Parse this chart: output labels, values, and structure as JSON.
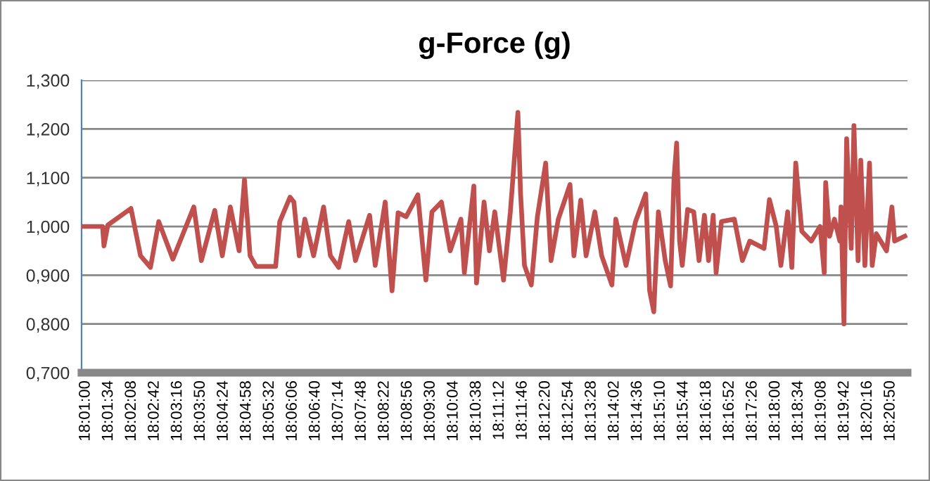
{
  "chart_data": {
    "type": "line",
    "title": "g-Force (g)",
    "x": [
      18.015,
      18.0236,
      18.0242,
      18.0258,
      18.0353,
      18.0392,
      18.0433,
      18.0467,
      18.0525,
      18.0611,
      18.0642,
      18.0697,
      18.0728,
      18.0761,
      18.0797,
      18.0819,
      18.0842,
      18.0867,
      18.0947,
      18.0964,
      18.1006,
      18.1022,
      18.1044,
      18.1067,
      18.1103,
      18.1144,
      18.1172,
      18.1206,
      18.1247,
      18.1275,
      18.1333,
      18.1356,
      18.1397,
      18.1425,
      18.145,
      18.1483,
      18.1531,
      18.1564,
      18.1589,
      18.1628,
      18.1664,
      18.1708,
      18.1722,
      18.1761,
      18.1772,
      18.1803,
      18.1825,
      18.1847,
      18.1883,
      18.1911,
      18.1942,
      18.1953,
      18.1969,
      18.1997,
      18.2022,
      18.2056,
      18.2078,
      18.2108,
      18.2156,
      18.2172,
      18.22,
      18.2222,
      18.2258,
      18.2286,
      18.2328,
      18.2344,
      18.2386,
      18.2425,
      18.2467,
      18.2483,
      18.25,
      18.2519,
      18.2547,
      18.2569,
      18.2583,
      18.2594,
      18.2606,
      18.2617,
      18.2639,
      18.2664,
      18.2686,
      18.2708,
      18.2725,
      18.2744,
      18.2756,
      18.2778,
      18.2831,
      18.2864,
      18.2894,
      18.2953,
      18.2975,
      18.3003,
      18.3022,
      18.305,
      18.3067,
      18.3083,
      18.3108,
      18.3147,
      18.3183,
      18.32,
      18.3206,
      18.3222,
      18.3242,
      18.3264,
      18.3269,
      18.3281,
      18.3292,
      18.3311,
      18.3322,
      18.3339,
      18.335,
      18.3367,
      18.3386,
      18.3397,
      18.3414,
      18.3456,
      18.3478,
      18.3489,
      18.3531
    ],
    "series": [
      {
        "color": "#c0504d",
        "values": [
          1.0,
          1.0,
          0.96,
          1.003,
          1.037,
          0.94,
          0.916,
          1.01,
          0.933,
          1.04,
          0.93,
          1.033,
          0.94,
          1.04,
          0.95,
          1.096,
          0.94,
          0.918,
          0.918,
          1.01,
          1.06,
          1.05,
          0.94,
          1.015,
          0.94,
          1.04,
          0.94,
          0.916,
          1.01,
          0.93,
          1.023,
          0.92,
          1.05,
          0.868,
          1.028,
          1.02,
          1.065,
          0.89,
          1.03,
          1.05,
          0.95,
          1.015,
          0.905,
          1.083,
          0.884,
          1.05,
          0.95,
          1.03,
          0.89,
          1.03,
          1.234,
          1.067,
          0.92,
          0.88,
          1.02,
          1.13,
          0.93,
          1.015,
          1.086,
          0.94,
          1.054,
          0.94,
          1.03,
          0.94,
          0.88,
          1.015,
          0.92,
          1.01,
          1.067,
          0.868,
          0.825,
          1.03,
          0.93,
          0.878,
          1.098,
          1.171,
          0.97,
          0.92,
          1.035,
          1.03,
          0.93,
          1.023,
          0.93,
          1.023,
          0.905,
          1.01,
          1.015,
          0.93,
          0.97,
          0.955,
          1.055,
          1.0,
          0.92,
          1.03,
          0.916,
          1.13,
          0.99,
          0.97,
          1.0,
          0.905,
          1.09,
          0.98,
          1.015,
          0.97,
          1.04,
          0.8,
          1.18,
          0.955,
          1.207,
          0.93,
          1.136,
          0.92,
          1.13,
          0.92,
          0.985,
          0.95,
          1.04,
          0.97,
          0.98
        ]
      }
    ],
    "xlim": [
      18.015,
      18.3542
    ],
    "xticks": [
      {
        "value": 18.01667,
        "label": "18:01:00"
      },
      {
        "value": 18.02611,
        "label": "18:01:34"
      },
      {
        "value": 18.03556,
        "label": "18:02:08"
      },
      {
        "value": 18.045,
        "label": "18:02:42"
      },
      {
        "value": 18.05444,
        "label": "18:03:16"
      },
      {
        "value": 18.06389,
        "label": "18:03:50"
      },
      {
        "value": 18.07333,
        "label": "18:04:24"
      },
      {
        "value": 18.08278,
        "label": "18:04:58"
      },
      {
        "value": 18.09222,
        "label": "18:05:32"
      },
      {
        "value": 18.10167,
        "label": "18:06:06"
      },
      {
        "value": 18.11111,
        "label": "18:06:40"
      },
      {
        "value": 18.12056,
        "label": "18:07:14"
      },
      {
        "value": 18.13,
        "label": "18:07:48"
      },
      {
        "value": 18.13944,
        "label": "18:08:22"
      },
      {
        "value": 18.14889,
        "label": "18:08:56"
      },
      {
        "value": 18.15833,
        "label": "18:09:30"
      },
      {
        "value": 18.16778,
        "label": "18:10:04"
      },
      {
        "value": 18.17722,
        "label": "18:10:38"
      },
      {
        "value": 18.18667,
        "label": "18:11:12"
      },
      {
        "value": 18.19611,
        "label": "18:11:46"
      },
      {
        "value": 18.20556,
        "label": "18:12:20"
      },
      {
        "value": 18.215,
        "label": "18:12:54"
      },
      {
        "value": 18.22444,
        "label": "18:13:28"
      },
      {
        "value": 18.23389,
        "label": "18:14:02"
      },
      {
        "value": 18.24333,
        "label": "18:14:36"
      },
      {
        "value": 18.25278,
        "label": "18:15:10"
      },
      {
        "value": 18.26222,
        "label": "18:15:44"
      },
      {
        "value": 18.27167,
        "label": "18:16:18"
      },
      {
        "value": 18.28111,
        "label": "18:16:52"
      },
      {
        "value": 18.29056,
        "label": "18:17:26"
      },
      {
        "value": 18.3,
        "label": "18:18:00"
      },
      {
        "value": 18.30944,
        "label": "18:18:34"
      },
      {
        "value": 18.31889,
        "label": "18:19:08"
      },
      {
        "value": 18.32833,
        "label": "18:19:42"
      },
      {
        "value": 18.33778,
        "label": "18:20:16"
      },
      {
        "value": 18.34722,
        "label": "18:20:50"
      }
    ],
    "ylim": [
      0.7,
      1.3
    ],
    "yticks": [
      {
        "value": 0.7,
        "label": "0,700"
      },
      {
        "value": 0.8,
        "label": "0,800"
      },
      {
        "value": 0.9,
        "label": "0,900"
      },
      {
        "value": 1.0,
        "label": "1,000"
      },
      {
        "value": 1.1,
        "label": "1,100"
      },
      {
        "value": 1.2,
        "label": "1,200"
      },
      {
        "value": 1.3,
        "label": "1,300"
      }
    ],
    "grid": "y",
    "marker": "none",
    "line_style": "solid"
  }
}
